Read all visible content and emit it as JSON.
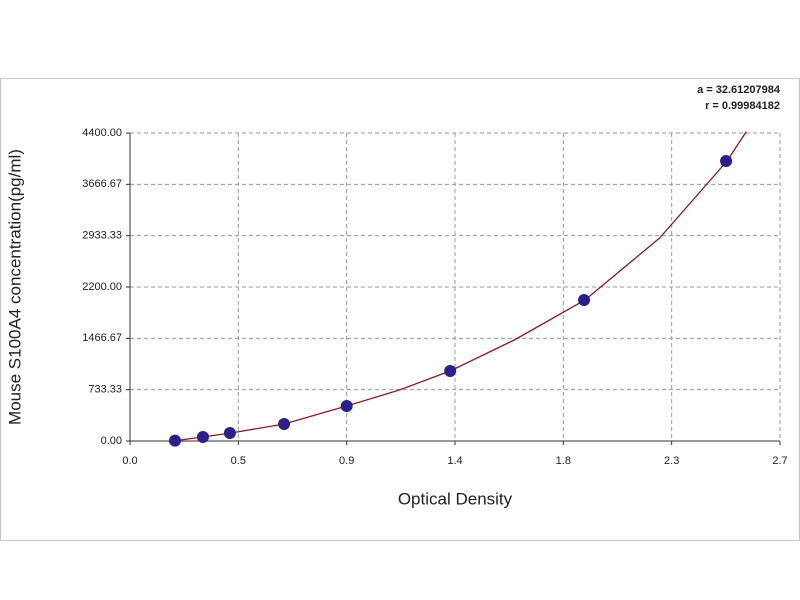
{
  "chart_data": {
    "type": "scatter",
    "xlabel": "Optical Density",
    "ylabel": "Mouse S100A4 concentration(pg/ml)",
    "annotations": [
      "a = 32.61207984",
      "r = 0.99984182"
    ],
    "x": [
      0.187,
      0.303,
      0.415,
      0.64,
      0.9,
      1.33,
      1.886,
      2.476
    ],
    "series": [
      {
        "color": "#2b1f8f",
        "values": [
          6,
          57,
          114,
          243,
          500,
          1000,
          2015,
          4000
        ]
      }
    ],
    "curve": {
      "color": "#8b1c24",
      "x": [
        0.18,
        0.3,
        0.42,
        0.64,
        0.9,
        1.12,
        1.33,
        1.6,
        1.89,
        2.2,
        2.48,
        2.56
      ],
      "y": [
        0,
        57,
        114,
        243,
        500,
        730,
        1000,
        1450,
        2015,
        2900,
        4000,
        4420
      ]
    },
    "xlim": [
      0,
      2.7
    ],
    "xticks": [
      {
        "value": 0,
        "label": "0.0"
      },
      {
        "value": 0.45,
        "label": "0.5"
      },
      0.9,
      {
        "value": 1.35,
        "label": "1.4"
      },
      1.8,
      {
        "value": 2.25,
        "label": "2.3"
      },
      2.7
    ],
    "ylim": [
      0,
      4400
    ],
    "yticks": [
      {
        "value": 0,
        "label": "0.00"
      },
      733.33,
      1466.67,
      {
        "value": 2200,
        "label": "2200.00"
      },
      2933.33,
      3666.67,
      {
        "value": 4400,
        "label": "4400.00"
      }
    ],
    "grid": true
  }
}
